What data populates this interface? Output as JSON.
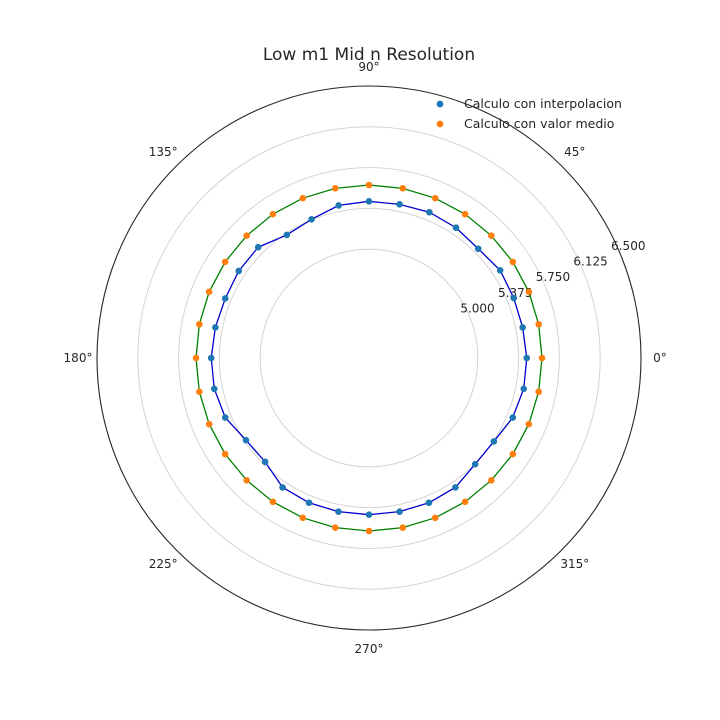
{
  "chart_data": {
    "type": "scatter",
    "projection": "polar",
    "title": "Low m1 Mid n Resolution",
    "angle_unit": "degrees",
    "theta_tick_labels": [
      "0°",
      "45°",
      "90°",
      "135°",
      "180°",
      "225°",
      "270°",
      "315°"
    ],
    "theta_ticks": [
      0,
      45,
      90,
      135,
      180,
      225,
      270,
      315
    ],
    "r_tick_labels": [
      "5.000",
      "5.375",
      "5.750",
      "6.125",
      "6.500"
    ],
    "r_ticks": [
      5.0,
      5.375,
      5.75,
      6.125,
      6.5
    ],
    "rlim": [
      4.0,
      6.5
    ],
    "grid": true,
    "legend_position": "top-right",
    "series": [
      {
        "name": "Calculo con interpolacion",
        "marker_color": "#1f77b4",
        "line_color": "#0000cd",
        "theta": [
          0,
          11.25,
          22.5,
          33.75,
          45,
          56.25,
          67.5,
          78.75,
          90,
          101.25,
          112.5,
          123.75,
          135,
          146.25,
          157.5,
          168.75,
          180,
          191.25,
          202.5,
          213.75,
          225,
          236.25,
          247.5,
          258.75,
          270,
          281.25,
          292.5,
          303.75,
          315,
          326.25,
          337.5,
          348.75
        ],
        "r": [
          5.45,
          5.44,
          5.44,
          5.45,
          5.42,
          5.44,
          5.45,
          5.44,
          5.44,
          5.43,
          5.38,
          5.36,
          5.44,
          5.44,
          5.43,
          5.44,
          5.45,
          5.45,
          5.43,
          5.36,
          5.35,
          5.43,
          5.44,
          5.44,
          5.44,
          5.44,
          5.44,
          5.43,
          5.38,
          5.38,
          5.43,
          5.45
        ]
      },
      {
        "name": "Calculo con valor medio",
        "marker_color": "#ff7f0e",
        "line_color": "#008000",
        "theta": [
          0,
          11.25,
          22.5,
          33.75,
          45,
          56.25,
          67.5,
          78.75,
          90,
          101.25,
          112.5,
          123.75,
          135,
          146.25,
          157.5,
          168.75,
          180,
          191.25,
          202.5,
          213.75,
          225,
          236.25,
          247.5,
          258.75,
          270,
          281.25,
          292.5,
          303.75,
          315,
          326.25,
          337.5,
          348.75
        ],
        "r": [
          5.59,
          5.59,
          5.59,
          5.59,
          5.59,
          5.59,
          5.59,
          5.59,
          5.59,
          5.59,
          5.59,
          5.59,
          5.59,
          5.59,
          5.59,
          5.59,
          5.59,
          5.59,
          5.59,
          5.59,
          5.59,
          5.59,
          5.59,
          5.59,
          5.59,
          5.59,
          5.59,
          5.59,
          5.59,
          5.59,
          5.59,
          5.59
        ]
      }
    ]
  }
}
